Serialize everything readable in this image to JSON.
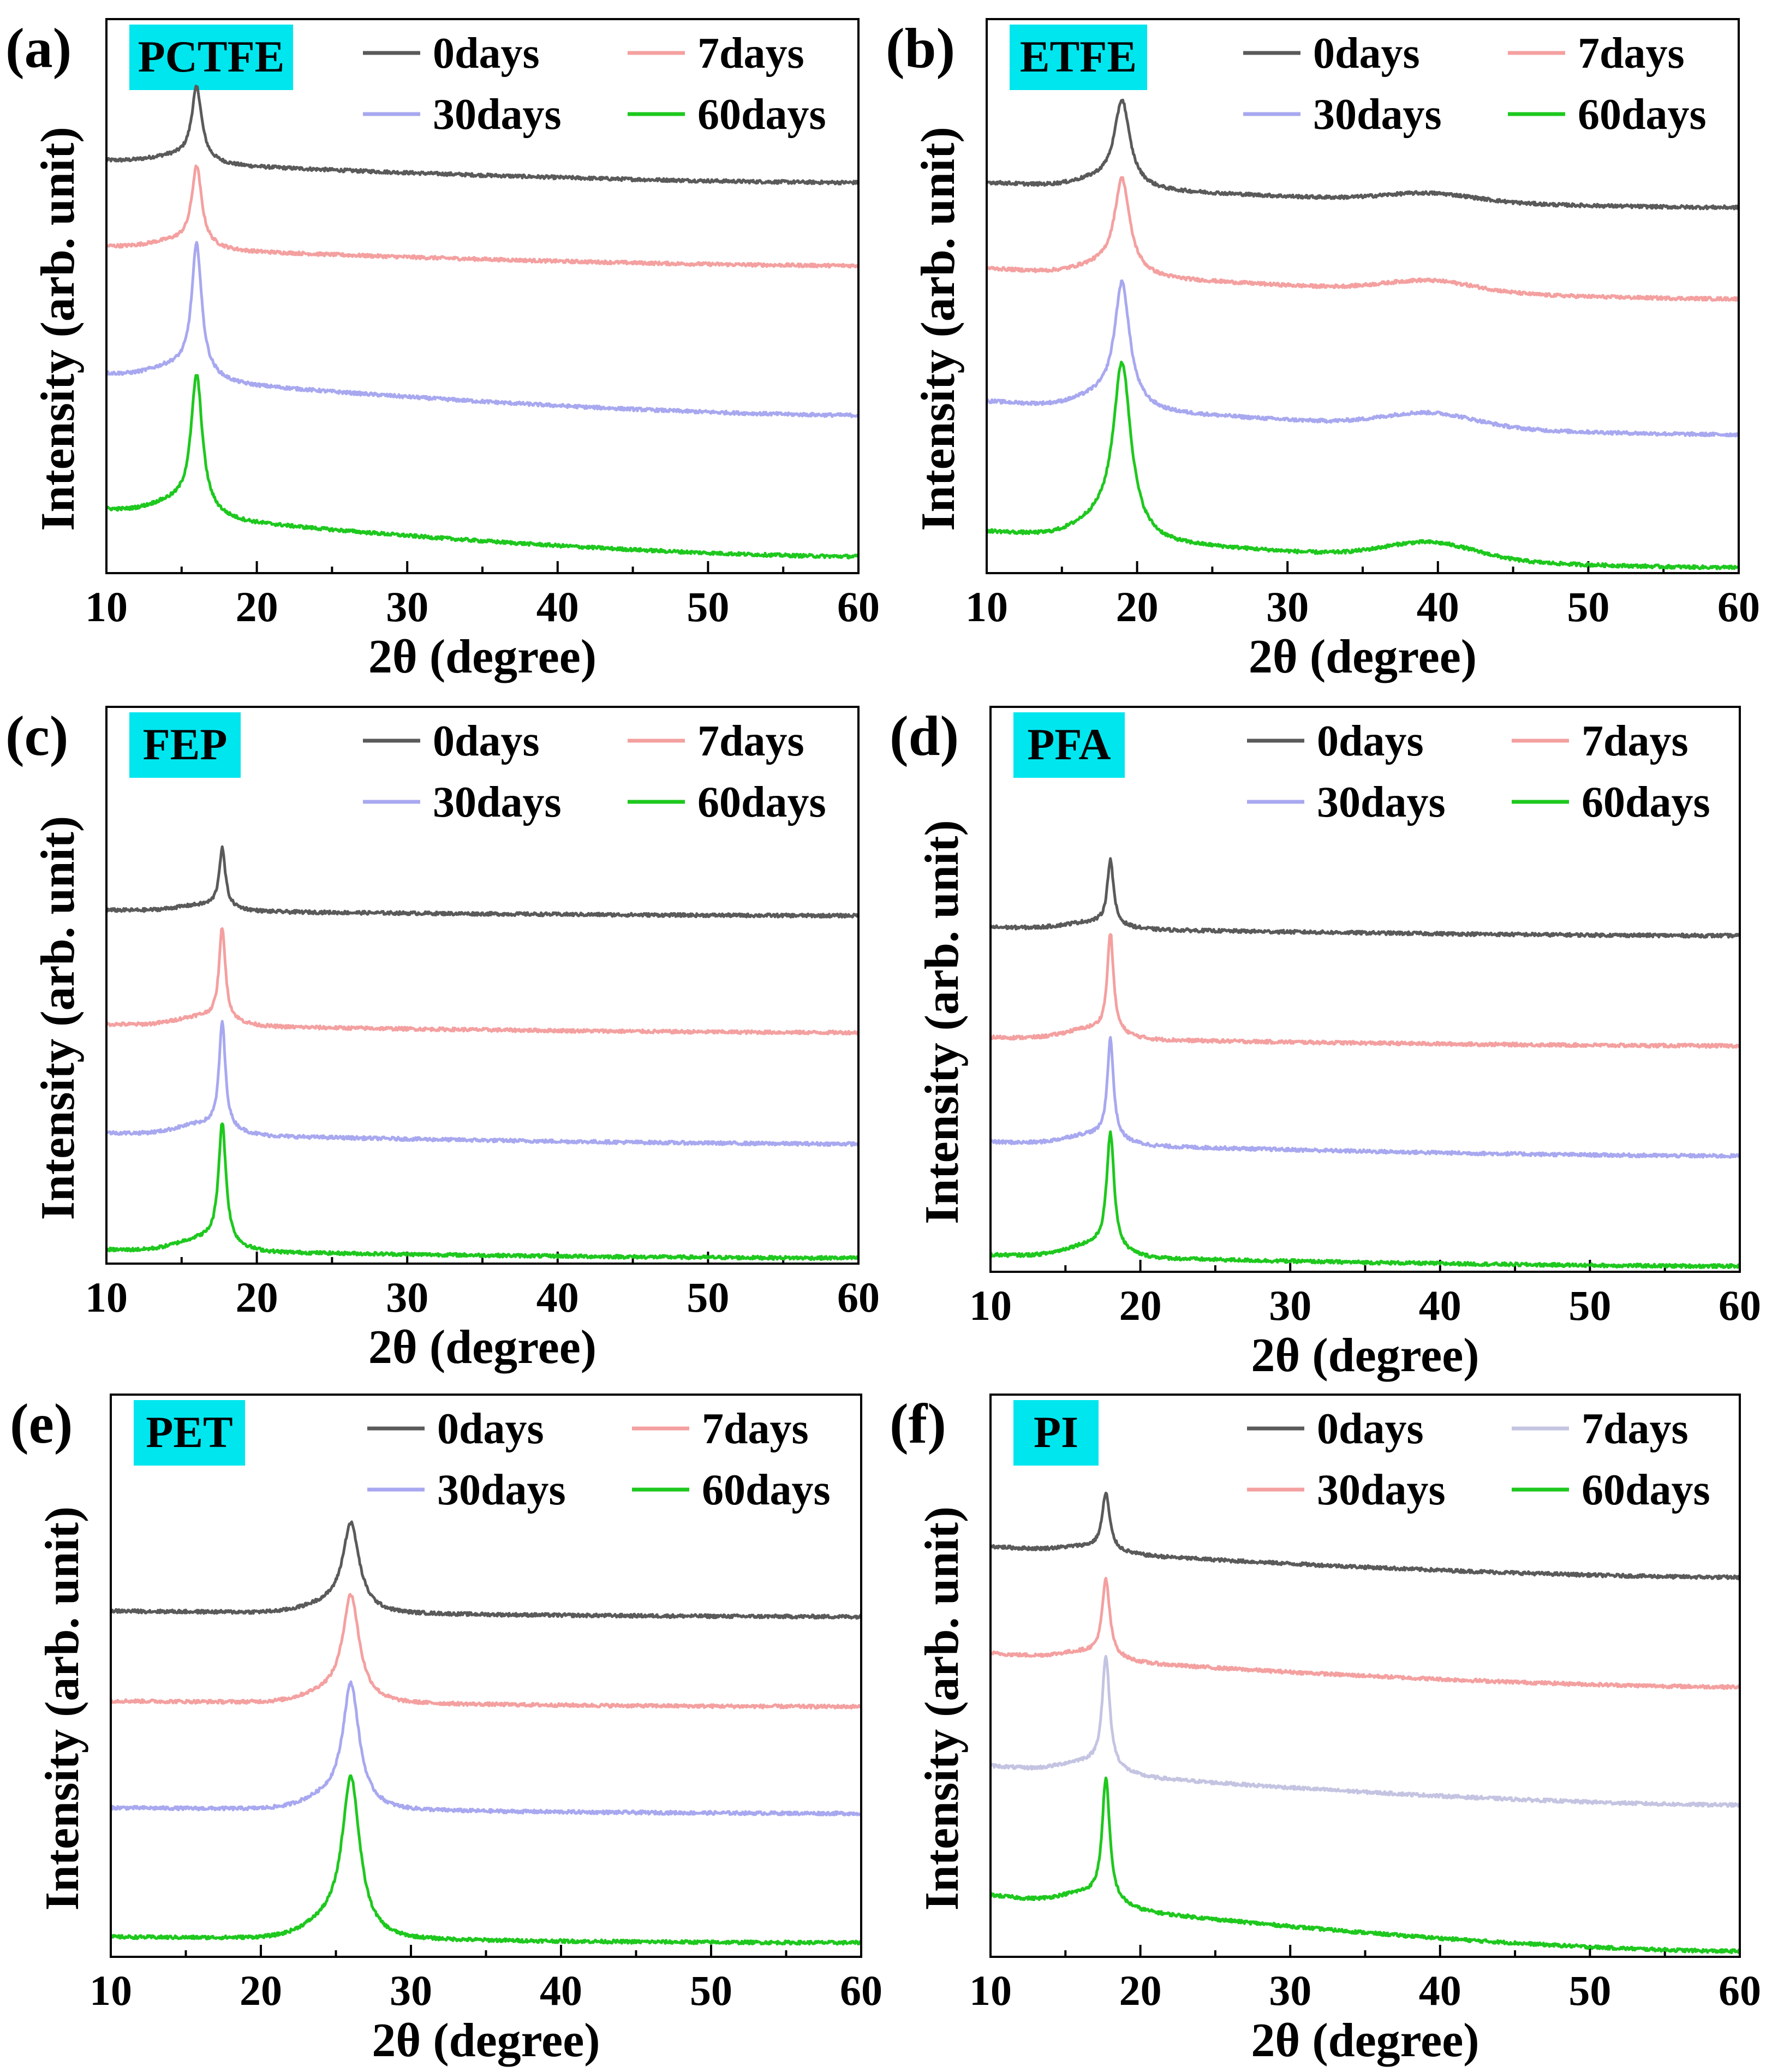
{
  "figure": {
    "series_colors": {
      "0days": "#5a5a5a",
      "7days": "#f4a0a0",
      "30days": "#a8a8f0",
      "60days": "#1ec81e",
      "pi_7days": "#c4c4e2"
    },
    "label_bg": "#00e6ee"
  },
  "chart_data": [
    {
      "panel": "(a)",
      "label": "PCTFE",
      "type": "line",
      "xlabel": "2θ (degree)",
      "ylabel": "Intensity (arb. unit)",
      "xlim": [
        10,
        60
      ],
      "xticks": [
        "10",
        "20",
        "30",
        "40",
        "50",
        "60"
      ],
      "legend_position": "top-right",
      "peaks": [
        16.0
      ],
      "broad_peaks": [],
      "series": [
        {
          "name": "0days",
          "color": "#5a5a5a",
          "baseline_start": 0.745,
          "baseline_end": 0.705,
          "peak_height": 0.13,
          "peak_width": 0.4,
          "broad_height": 0.0
        },
        {
          "name": "7days",
          "color": "#f4a0a0",
          "baseline_start": 0.59,
          "baseline_end": 0.555,
          "peak_height": 0.14,
          "peak_width": 0.4,
          "broad_height": 0.0
        },
        {
          "name": "30days",
          "color": "#a8a8f0",
          "baseline_start": 0.36,
          "baseline_end": 0.285,
          "peak_height": 0.23,
          "peak_width": 0.4,
          "broad_height": 0.0
        },
        {
          "name": "60days",
          "color": "#1ec81e",
          "baseline_start": 0.115,
          "baseline_end": 0.03,
          "peak_height": 0.24,
          "peak_width": 0.45,
          "broad_height": 0.0
        }
      ]
    },
    {
      "panel": "(b)",
      "label": "ETFE",
      "type": "line",
      "xlabel": "2θ (degree)",
      "ylabel": "Intensity (arb. unit)",
      "xlim": [
        10,
        60
      ],
      "xticks": [
        "10",
        "20",
        "30",
        "40",
        "50",
        "60"
      ],
      "legend_position": "top-right",
      "peaks": [
        19.0
      ],
      "broad_peaks": [
        39.5
      ],
      "series": [
        {
          "name": "0days",
          "color": "#5a5a5a",
          "baseline_start": 0.705,
          "baseline_end": 0.66,
          "peak_height": 0.15,
          "peak_width": 0.6,
          "broad_height": 0.015
        },
        {
          "name": "7days",
          "color": "#f4a0a0",
          "baseline_start": 0.55,
          "baseline_end": 0.495,
          "peak_height": 0.165,
          "peak_width": 0.6,
          "broad_height": 0.02
        },
        {
          "name": "30days",
          "color": "#a8a8f0",
          "baseline_start": 0.31,
          "baseline_end": 0.25,
          "peak_height": 0.215,
          "peak_width": 0.6,
          "broad_height": 0.025
        },
        {
          "name": "60days",
          "color": "#1ec81e",
          "baseline_start": 0.075,
          "baseline_end": 0.01,
          "peak_height": 0.3,
          "peak_width": 0.7,
          "broad_height": 0.03
        }
      ]
    },
    {
      "panel": "(c)",
      "label": "FEP",
      "type": "line",
      "xlabel": "2θ (degree)",
      "ylabel": "Intensity (arb. unit)",
      "xlim": [
        10,
        60
      ],
      "xticks": [
        "10",
        "20",
        "30",
        "40",
        "50",
        "60"
      ],
      "legend_position": "top-right",
      "peaks": [
        17.7
      ],
      "broad_peaks": [],
      "series": [
        {
          "name": "0days",
          "color": "#5a5a5a",
          "baseline_start": 0.635,
          "baseline_end": 0.625,
          "peak_height": 0.105,
          "peak_width": 0.25,
          "broad_height": 0.0
        },
        {
          "name": "7days",
          "color": "#f4a0a0",
          "baseline_start": 0.43,
          "baseline_end": 0.415,
          "peak_height": 0.165,
          "peak_width": 0.25,
          "broad_height": 0.0
        },
        {
          "name": "30days",
          "color": "#a8a8f0",
          "baseline_start": 0.235,
          "baseline_end": 0.215,
          "peak_height": 0.19,
          "peak_width": 0.25,
          "broad_height": 0.0
        },
        {
          "name": "60days",
          "color": "#1ec81e",
          "baseline_start": 0.025,
          "baseline_end": 0.01,
          "peak_height": 0.215,
          "peak_width": 0.3,
          "broad_height": 0.0
        }
      ]
    },
    {
      "panel": "(d)",
      "label": "PFA",
      "type": "line",
      "xlabel": "2θ (degree)",
      "ylabel": "Intensity (arb. unit)",
      "xlim": [
        10,
        60
      ],
      "xticks": [
        "10",
        "20",
        "30",
        "40",
        "50",
        "60"
      ],
      "legend_position": "top-right",
      "peaks": [
        18.0
      ],
      "broad_peaks": [],
      "series": [
        {
          "name": "0days",
          "color": "#5a5a5a",
          "baseline_start": 0.61,
          "baseline_end": 0.595,
          "peak_height": 0.115,
          "peak_width": 0.25,
          "broad_height": 0.0
        },
        {
          "name": "7days",
          "color": "#f4a0a0",
          "baseline_start": 0.415,
          "baseline_end": 0.4,
          "peak_height": 0.175,
          "peak_width": 0.25,
          "broad_height": 0.0
        },
        {
          "name": "30days",
          "color": "#a8a8f0",
          "baseline_start": 0.23,
          "baseline_end": 0.205,
          "peak_height": 0.175,
          "peak_width": 0.25,
          "broad_height": 0.0
        },
        {
          "name": "60days",
          "color": "#1ec81e",
          "baseline_start": 0.03,
          "baseline_end": 0.01,
          "peak_height": 0.205,
          "peak_width": 0.3,
          "broad_height": 0.0
        }
      ]
    },
    {
      "panel": "(e)",
      "label": "PET",
      "type": "line",
      "xlabel": "2θ (degree)",
      "ylabel": "Intensity (arb. unit)",
      "xlim": [
        10,
        60
      ],
      "xticks": [
        "10",
        "20",
        "30",
        "40",
        "50",
        "60"
      ],
      "legend_position": "top-right",
      "peaks": [
        26.0
      ],
      "broad_peaks": [],
      "series": [
        {
          "name": "0days",
          "color": "#5a5a5a",
          "baseline_start": 0.615,
          "baseline_end": 0.605,
          "peak_height": 0.15,
          "peak_width": 0.65,
          "broad_height": 0.0
        },
        {
          "name": "7days",
          "color": "#f4a0a0",
          "baseline_start": 0.455,
          "baseline_end": 0.445,
          "peak_height": 0.18,
          "peak_width": 0.65,
          "broad_height": 0.0
        },
        {
          "name": "30days",
          "color": "#a8a8f0",
          "baseline_start": 0.265,
          "baseline_end": 0.255,
          "peak_height": 0.21,
          "peak_width": 0.65,
          "broad_height": 0.0
        },
        {
          "name": "60days",
          "color": "#1ec81e",
          "baseline_start": 0.035,
          "baseline_end": 0.025,
          "peak_height": 0.27,
          "peak_width": 0.7,
          "broad_height": 0.0
        }
      ]
    },
    {
      "panel": "(f)",
      "label": "PI",
      "type": "line",
      "xlabel": "2θ (degree)",
      "ylabel": "Intensity (arb. unit)",
      "xlim": [
        10,
        60
      ],
      "xticks": [
        "10",
        "20",
        "30",
        "40",
        "50",
        "60"
      ],
      "legend_position": "top-right",
      "peaks": [
        17.7
      ],
      "broad_peaks": [],
      "series": [
        {
          "name": "0days",
          "color": "#5a5a5a",
          "baseline_start": 0.73,
          "baseline_end": 0.675,
          "peak_height": 0.1,
          "peak_width": 0.3,
          "broad_height": 0.0
        },
        {
          "name": "30days",
          "color": "#f4a0a0",
          "baseline_start": 0.54,
          "baseline_end": 0.48,
          "peak_height": 0.135,
          "peak_width": 0.3,
          "broad_height": 0.0
        },
        {
          "name": "7days",
          "color": "#c4c4e2",
          "baseline_start": 0.34,
          "baseline_end": 0.27,
          "peak_height": 0.195,
          "peak_width": 0.3,
          "broad_height": 0.0
        },
        {
          "name": "60days",
          "color": "#1ec81e",
          "baseline_start": 0.11,
          "baseline_end": 0.01,
          "peak_height": 0.215,
          "peak_width": 0.3,
          "broad_height": 0.0
        }
      ],
      "legend_order": [
        "0days",
        "7days",
        "30days",
        "60days"
      ]
    }
  ]
}
